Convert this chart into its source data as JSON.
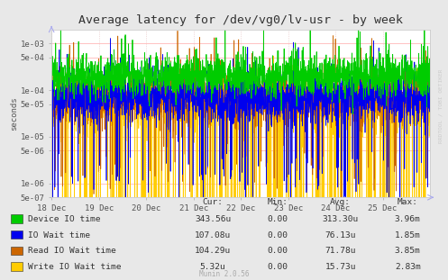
{
  "title": "Average latency for /dev/vg0/lv-usr - by week",
  "ylabel": "seconds",
  "background_color": "#e8e8e8",
  "plot_bg_color": "#ffffff",
  "grid_color_h": "#ffaaaa",
  "grid_color_v": "#ddaaaa",
  "ylim_min": 5e-07,
  "ylim_max": 0.002,
  "xlabel_dates": [
    "18 Dec",
    "19 Dec",
    "20 Dec",
    "21 Dec",
    "22 Dec",
    "23 Dec",
    "24 Dec",
    "25 Dec"
  ],
  "series_labels": [
    "Device IO time",
    "IO Wait time",
    "Read IO Wait time",
    "Write IO Wait time"
  ],
  "series_colors": [
    "#00cc00",
    "#0000ee",
    "#cc6600",
    "#ffcc00"
  ],
  "legend_cur": [
    "343.56u",
    "107.08u",
    "104.29u",
    "5.32u"
  ],
  "legend_min": [
    "0.00",
    "0.00",
    "0.00",
    "0.00"
  ],
  "legend_avg": [
    "313.30u",
    "76.13u",
    "71.78u",
    "15.73u"
  ],
  "legend_max": [
    "3.96m",
    "1.85m",
    "3.85m",
    "2.83m"
  ],
  "watermark": "Munin 2.0.56",
  "rrdtool_text": "RRDTOOL / TOBI OETIKER",
  "title_fontsize": 9.5,
  "axis_fontsize": 6.5,
  "legend_fontsize": 6.8
}
